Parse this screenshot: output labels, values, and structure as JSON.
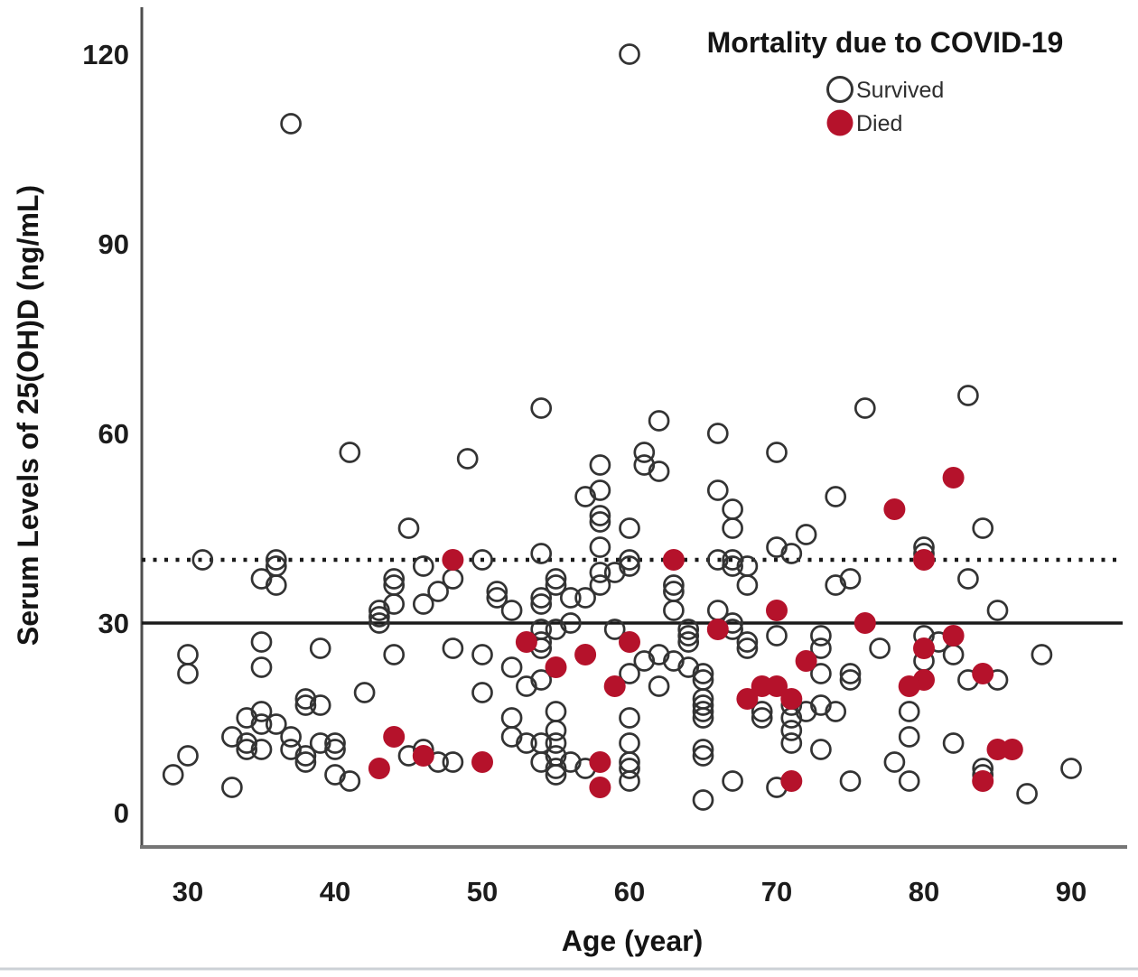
{
  "chart_data": {
    "type": "scatter",
    "title": "Mortality due to COVID-19",
    "xlabel": "Age (year)",
    "ylabel": "Serum Levels of 25(OH)D (ng/mL)",
    "xlim": [
      27,
      93.5
    ],
    "ylim": [
      -5,
      127
    ],
    "x_ticks": [
      30,
      40,
      50,
      60,
      70,
      80,
      90
    ],
    "y_ticks": [
      0,
      30,
      60,
      90,
      120
    ],
    "grid": false,
    "legend_position": "top-right",
    "reference_lines": [
      {
        "y": 30,
        "style": "solid"
      },
      {
        "y": 40,
        "style": "dotted"
      }
    ],
    "series": [
      {
        "name": "Survived",
        "marker": "open-circle",
        "color": "#333333",
        "points": [
          [
            60,
            120
          ],
          [
            37,
            109
          ],
          [
            83,
            66
          ],
          [
            54,
            64
          ],
          [
            76,
            64
          ],
          [
            62,
            62
          ],
          [
            66,
            60
          ],
          [
            70,
            57
          ],
          [
            61,
            57
          ],
          [
            41,
            57
          ],
          [
            49,
            56
          ],
          [
            58,
            55
          ],
          [
            61,
            55
          ],
          [
            62,
            54
          ],
          [
            66,
            51
          ],
          [
            58,
            51
          ],
          [
            57,
            50
          ],
          [
            74,
            50
          ],
          [
            67,
            48
          ],
          [
            58,
            47
          ],
          [
            58,
            46
          ],
          [
            45,
            45
          ],
          [
            60,
            45
          ],
          [
            67,
            45
          ],
          [
            84,
            45
          ],
          [
            72,
            44
          ],
          [
            58,
            42
          ],
          [
            70,
            42
          ],
          [
            80,
            42
          ],
          [
            71,
            41
          ],
          [
            80,
            41
          ],
          [
            54,
            41
          ],
          [
            31,
            40
          ],
          [
            36,
            40
          ],
          [
            50,
            40
          ],
          [
            60,
            40
          ],
          [
            66,
            40
          ],
          [
            67,
            40
          ],
          [
            36,
            39
          ],
          [
            46,
            39
          ],
          [
            60,
            39
          ],
          [
            59,
            38
          ],
          [
            58,
            38
          ],
          [
            67,
            39
          ],
          [
            68,
            39
          ],
          [
            35,
            37
          ],
          [
            44,
            37
          ],
          [
            48,
            37
          ],
          [
            55,
            37
          ],
          [
            75,
            37
          ],
          [
            83,
            37
          ],
          [
            36,
            36
          ],
          [
            44,
            36
          ],
          [
            55,
            36
          ],
          [
            58,
            36
          ],
          [
            63,
            36
          ],
          [
            68,
            36
          ],
          [
            74,
            36
          ],
          [
            47,
            35
          ],
          [
            51,
            35
          ],
          [
            63,
            35
          ],
          [
            51,
            34
          ],
          [
            54,
            34
          ],
          [
            56,
            34
          ],
          [
            57,
            34
          ],
          [
            44,
            33
          ],
          [
            46,
            33
          ],
          [
            54,
            33
          ],
          [
            43,
            32
          ],
          [
            52,
            32
          ],
          [
            63,
            32
          ],
          [
            66,
            32
          ],
          [
            85,
            32
          ],
          [
            43,
            31
          ],
          [
            43,
            30
          ],
          [
            56,
            30
          ],
          [
            67,
            30
          ],
          [
            59,
            29
          ],
          [
            64,
            29
          ],
          [
            54,
            29
          ],
          [
            55,
            29
          ],
          [
            67,
            29
          ],
          [
            64,
            28
          ],
          [
            70,
            28
          ],
          [
            80,
            28
          ],
          [
            73,
            28
          ],
          [
            35,
            27
          ],
          [
            54,
            27
          ],
          [
            68,
            27
          ],
          [
            81,
            27
          ],
          [
            64,
            27
          ],
          [
            39,
            26
          ],
          [
            48,
            26
          ],
          [
            54,
            26
          ],
          [
            68,
            26
          ],
          [
            73,
            26
          ],
          [
            77,
            26
          ],
          [
            30,
            25
          ],
          [
            44,
            25
          ],
          [
            50,
            25
          ],
          [
            62,
            25
          ],
          [
            82,
            25
          ],
          [
            88,
            25
          ],
          [
            61,
            24
          ],
          [
            63,
            24
          ],
          [
            80,
            24
          ],
          [
            35,
            23
          ],
          [
            52,
            23
          ],
          [
            64,
            23
          ],
          [
            73,
            22
          ],
          [
            30,
            22
          ],
          [
            60,
            22
          ],
          [
            65,
            22
          ],
          [
            75,
            22
          ],
          [
            54,
            21
          ],
          [
            65,
            21
          ],
          [
            75,
            21
          ],
          [
            83,
            21
          ],
          [
            85,
            21
          ],
          [
            53,
            20
          ],
          [
            62,
            20
          ],
          [
            42,
            19
          ],
          [
            50,
            19
          ],
          [
            38,
            18
          ],
          [
            65,
            18
          ],
          [
            38,
            17
          ],
          [
            39,
            17
          ],
          [
            65,
            17
          ],
          [
            71,
            17
          ],
          [
            73,
            17
          ],
          [
            35,
            16
          ],
          [
            55,
            16
          ],
          [
            65,
            16
          ],
          [
            69,
            16
          ],
          [
            72,
            16
          ],
          [
            79,
            16
          ],
          [
            34,
            15
          ],
          [
            52,
            15
          ],
          [
            60,
            15
          ],
          [
            65,
            15
          ],
          [
            69,
            15
          ],
          [
            71,
            15
          ],
          [
            74,
            16
          ],
          [
            35,
            14
          ],
          [
            36,
            14
          ],
          [
            33,
            12
          ],
          [
            37,
            12
          ],
          [
            52,
            12
          ],
          [
            79,
            12
          ],
          [
            55,
            13
          ],
          [
            71,
            13
          ],
          [
            34,
            11
          ],
          [
            39,
            11
          ],
          [
            53,
            11
          ],
          [
            54,
            11
          ],
          [
            55,
            11
          ],
          [
            60,
            11
          ],
          [
            71,
            11
          ],
          [
            82,
            11
          ],
          [
            34,
            10
          ],
          [
            35,
            10
          ],
          [
            37,
            10
          ],
          [
            40,
            11
          ],
          [
            40,
            10
          ],
          [
            46,
            10
          ],
          [
            65,
            10
          ],
          [
            73,
            10
          ],
          [
            30,
            9
          ],
          [
            38,
            9
          ],
          [
            45,
            9
          ],
          [
            55,
            9
          ],
          [
            65,
            9
          ],
          [
            38,
            8
          ],
          [
            47,
            8
          ],
          [
            48,
            8
          ],
          [
            54,
            8
          ],
          [
            56,
            8
          ],
          [
            60,
            8
          ],
          [
            78,
            8
          ],
          [
            55,
            7
          ],
          [
            57,
            7
          ],
          [
            60,
            7
          ],
          [
            84,
            7
          ],
          [
            90,
            7
          ],
          [
            29,
            6
          ],
          [
            40,
            6
          ],
          [
            55,
            6
          ],
          [
            84,
            6
          ],
          [
            33,
            4
          ],
          [
            41,
            5
          ],
          [
            60,
            5
          ],
          [
            67,
            5
          ],
          [
            70,
            4
          ],
          [
            75,
            5
          ],
          [
            79,
            5
          ],
          [
            87,
            3
          ],
          [
            65,
            2
          ]
        ]
      },
      {
        "name": "Died",
        "marker": "filled-circle",
        "color": "#b5122b",
        "points": [
          [
            82,
            53
          ],
          [
            78,
            48
          ],
          [
            48,
            40
          ],
          [
            63,
            40
          ],
          [
            80,
            40
          ],
          [
            70,
            32
          ],
          [
            76,
            30
          ],
          [
            66,
            29
          ],
          [
            60,
            27
          ],
          [
            53,
            27
          ],
          [
            82,
            28
          ],
          [
            80,
            26
          ],
          [
            57,
            25
          ],
          [
            55,
            23
          ],
          [
            72,
            24
          ],
          [
            84,
            22
          ],
          [
            80,
            21
          ],
          [
            79,
            20
          ],
          [
            59,
            20
          ],
          [
            69,
            20
          ],
          [
            70,
            20
          ],
          [
            68,
            18
          ],
          [
            71,
            18
          ],
          [
            44,
            12
          ],
          [
            85,
            10
          ],
          [
            86,
            10
          ],
          [
            46,
            9
          ],
          [
            50,
            8
          ],
          [
            58,
            8
          ],
          [
            43,
            7
          ],
          [
            71,
            5
          ],
          [
            84,
            5
          ],
          [
            58,
            4
          ]
        ]
      }
    ]
  },
  "ui": {
    "colors": {
      "died_fill": "#b5122b",
      "survived_stroke": "#333333",
      "solid_ref_line": "#1a1a1a",
      "dotted_ref_line": "#1a1a1a",
      "y_axis_line": "#4d4d4d",
      "x_axis_line": "#757575",
      "footer_rule": "#ccd1d6"
    }
  }
}
